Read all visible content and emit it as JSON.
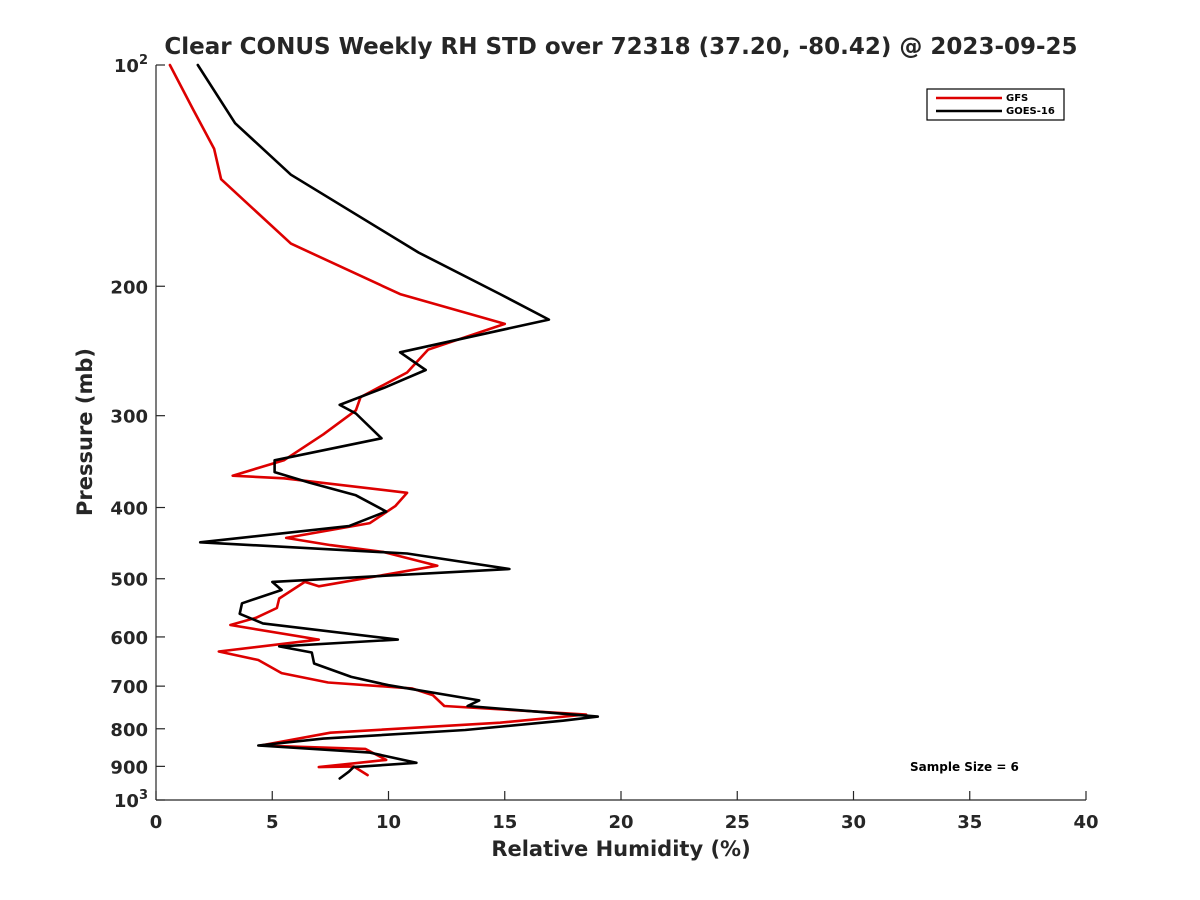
{
  "chart_data": {
    "type": "line",
    "title": "Clear CONUS Weekly RH STD over 72318 (37.20, -80.42) @ 2023-09-25",
    "xlabel": "Relative Humidity (%)",
    "ylabel": "Pressure (mb)",
    "xlim": [
      0,
      40
    ],
    "ylim": [
      100,
      1000
    ],
    "yscale": "log",
    "y_reversed": true,
    "grid": false,
    "x_ticks": [
      "0",
      "5",
      "10",
      "15",
      "20",
      "25",
      "30",
      "35",
      "40"
    ],
    "x_tick_values": [
      0,
      5,
      10,
      15,
      20,
      25,
      30,
      35,
      40
    ],
    "y_ticks": [
      {
        "value": 100,
        "base": "10",
        "exp": "2"
      },
      {
        "value": 200,
        "base": "200",
        "exp": ""
      },
      {
        "value": 300,
        "base": "300",
        "exp": ""
      },
      {
        "value": 400,
        "base": "400",
        "exp": ""
      },
      {
        "value": 500,
        "base": "500",
        "exp": ""
      },
      {
        "value": 600,
        "base": "600",
        "exp": ""
      },
      {
        "value": 700,
        "base": "700",
        "exp": ""
      },
      {
        "value": 800,
        "base": "800",
        "exp": ""
      },
      {
        "value": 900,
        "base": "900",
        "exp": ""
      },
      {
        "value": 1000,
        "base": "10",
        "exp": "3"
      }
    ],
    "legend_position": "top-right",
    "annotation": "Sample Size = 6",
    "series": [
      {
        "name": "GFS",
        "color": "#dd0000",
        "points": [
          [
            0.6,
            100
          ],
          [
            1.6,
            115
          ],
          [
            2.5,
            130
          ],
          [
            2.8,
            143
          ],
          [
            5.8,
            175
          ],
          [
            10.5,
            205
          ],
          [
            15.0,
            225
          ],
          [
            11.7,
            244
          ],
          [
            10.8,
            262
          ],
          [
            8.8,
            283
          ],
          [
            8.6,
            295
          ],
          [
            7.2,
            318
          ],
          [
            5.5,
            345
          ],
          [
            3.3,
            362
          ],
          [
            5.5,
            365
          ],
          [
            10.8,
            382
          ],
          [
            10.3,
            398
          ],
          [
            9.2,
            420
          ],
          [
            5.6,
            440
          ],
          [
            7.5,
            450
          ],
          [
            9.8,
            460
          ],
          [
            12.1,
            480
          ],
          [
            7.0,
            512
          ],
          [
            6.4,
            505
          ],
          [
            5.3,
            532
          ],
          [
            5.2,
            548
          ],
          [
            4.3,
            565
          ],
          [
            3.2,
            578
          ],
          [
            7.0,
            605
          ],
          [
            2.7,
            628
          ],
          [
            4.4,
            645
          ],
          [
            5.4,
            672
          ],
          [
            7.4,
            692
          ],
          [
            11.0,
            705
          ],
          [
            11.9,
            720
          ],
          [
            12.4,
            745
          ],
          [
            18.5,
            765
          ],
          [
            14.8,
            785
          ],
          [
            7.5,
            810
          ],
          [
            4.5,
            843
          ],
          [
            9.0,
            852
          ],
          [
            9.9,
            882
          ],
          [
            7.0,
            902
          ],
          [
            8.5,
            900
          ],
          [
            9.1,
            925
          ]
        ]
      },
      {
        "name": "GOES-16",
        "color": "#000000",
        "points": [
          [
            1.8,
            100
          ],
          [
            3.4,
            120
          ],
          [
            5.8,
            141
          ],
          [
            11.3,
            180
          ],
          [
            14.8,
            205
          ],
          [
            16.9,
            222
          ],
          [
            10.5,
            246
          ],
          [
            11.6,
            260
          ],
          [
            9.8,
            275
          ],
          [
            7.9,
            290
          ],
          [
            8.6,
            298
          ],
          [
            9.7,
            322
          ],
          [
            5.1,
            345
          ],
          [
            5.1,
            358
          ],
          [
            6.6,
            370
          ],
          [
            8.6,
            385
          ],
          [
            9.9,
            405
          ],
          [
            8.3,
            424
          ],
          [
            1.9,
            446
          ],
          [
            10.8,
            462
          ],
          [
            15.2,
            485
          ],
          [
            5.0,
            505
          ],
          [
            5.4,
            518
          ],
          [
            3.7,
            540
          ],
          [
            3.6,
            558
          ],
          [
            4.6,
            575
          ],
          [
            10.4,
            605
          ],
          [
            5.3,
            618
          ],
          [
            6.7,
            630
          ],
          [
            6.8,
            652
          ],
          [
            8.4,
            680
          ],
          [
            10.0,
            698
          ],
          [
            13.9,
            732
          ],
          [
            13.4,
            745
          ],
          [
            19.0,
            770
          ],
          [
            17.5,
            780
          ],
          [
            13.3,
            803
          ],
          [
            7.2,
            825
          ],
          [
            4.4,
            843
          ],
          [
            9.2,
            862
          ],
          [
            11.2,
            890
          ],
          [
            8.5,
            902
          ],
          [
            8.3,
            915
          ],
          [
            7.9,
            935
          ]
        ]
      }
    ]
  }
}
